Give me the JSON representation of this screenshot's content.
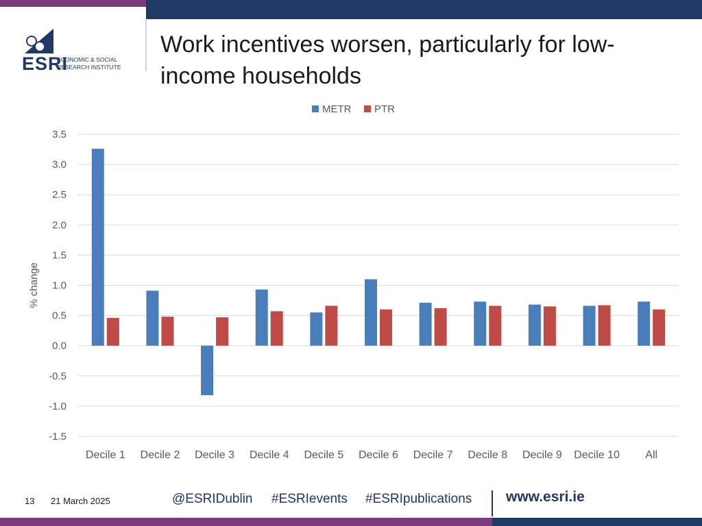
{
  "slide": {
    "title": "Work incentives worsen, particularly for low-income households",
    "page_number": "13",
    "date": "21 March 2025",
    "social": [
      "@ESRIDublin",
      "#ESRIevents",
      "#ESRIpublications"
    ],
    "website": "www.esri.ie"
  },
  "logo": {
    "name": "ESRI",
    "line1": "ECONOMIC & SOCIAL",
    "line2": "RESEARCH INSTITUTE"
  },
  "colors": {
    "brand_navy": "#203864",
    "brand_purple": "#7a3b7e",
    "metr": "#4a7ebb",
    "ptr": "#be4b48"
  },
  "chart_data": {
    "type": "bar",
    "title": "",
    "xlabel": "",
    "ylabel": "% change",
    "ylim": [
      -1.5,
      3.5
    ],
    "yticks": [
      "3.5",
      "3.0",
      "2.5",
      "2.0",
      "1.5",
      "1.0",
      "0.5",
      "0.0",
      "-0.5",
      "-1.0",
      "-1.5"
    ],
    "categories": [
      "Decile 1",
      "Decile 2",
      "Decile 3",
      "Decile 4",
      "Decile 5",
      "Decile 6",
      "Decile 7",
      "Decile 8",
      "Decile 9",
      "Decile 10",
      "All"
    ],
    "series": [
      {
        "name": "METR",
        "values": [
          3.26,
          0.91,
          -0.82,
          0.93,
          0.55,
          1.1,
          0.71,
          0.73,
          0.68,
          0.66,
          0.73
        ]
      },
      {
        "name": "PTR",
        "values": [
          0.46,
          0.48,
          0.47,
          0.57,
          0.66,
          0.6,
          0.62,
          0.66,
          0.65,
          0.67,
          0.6
        ]
      }
    ],
    "grid": true,
    "legend": "top-center"
  }
}
